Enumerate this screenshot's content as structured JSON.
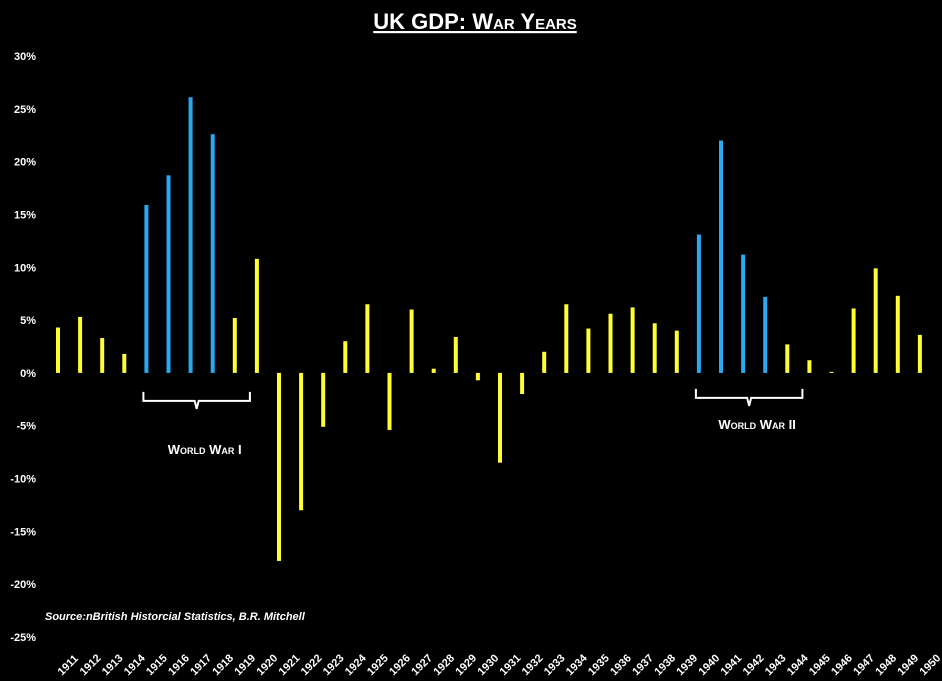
{
  "chart_data": {
    "type": "bar",
    "title": "UK GDP: War Years",
    "xlabel": "",
    "ylabel": "",
    "ylim": [
      -25,
      30
    ],
    "yticks": [
      30,
      25,
      20,
      15,
      10,
      5,
      0,
      -5,
      -10,
      -15,
      -20,
      -25
    ],
    "ytick_labels": [
      "30%",
      "25%",
      "20%",
      "15%",
      "10%",
      "5%",
      "0%",
      "-5%",
      "-10%",
      "-15%",
      "-20%",
      "-25%"
    ],
    "categories": [
      "1911",
      "1912",
      "1913",
      "1914",
      "1915",
      "1916",
      "1917",
      "1918",
      "1919",
      "1920",
      "1921",
      "1922",
      "1923",
      "1924",
      "1925",
      "1926",
      "1927",
      "1928",
      "1929",
      "1930",
      "1931",
      "1932",
      "1933",
      "1934",
      "1935",
      "1936",
      "1937",
      "1938",
      "1939",
      "1940",
      "1941",
      "1942",
      "1943",
      "1944",
      "1945",
      "1946",
      "1947",
      "1948",
      "1949",
      "1950"
    ],
    "values": [
      4.3,
      5.3,
      3.3,
      1.8,
      15.9,
      18.7,
      26.1,
      22.6,
      5.2,
      10.8,
      -17.8,
      -13.0,
      -5.1,
      3.0,
      6.5,
      -5.4,
      6.0,
      0.4,
      3.4,
      -0.7,
      -8.5,
      -2.0,
      2.0,
      6.5,
      4.2,
      5.6,
      6.2,
      4.7,
      4.0,
      13.1,
      22.0,
      11.2,
      7.2,
      2.7,
      1.2,
      0.1,
      6.1,
      9.9,
      7.3,
      3.6
    ],
    "war_years": [
      "1915",
      "1916",
      "1917",
      "1918",
      "1940",
      "1941",
      "1942",
      "1943"
    ],
    "colors": {
      "peace": "#ffff33",
      "war": "#29a9f0",
      "background": "#000000",
      "text": "#ffffff"
    },
    "annotations": [
      {
        "label": "World War I",
        "from": "1915",
        "to": "1920"
      },
      {
        "label": "World War II",
        "from": "1940",
        "to": "1945"
      }
    ],
    "source": "Source:nBritish Historcial Statistics, B.R. Mitchell",
    "grid": false,
    "legend": "none"
  }
}
